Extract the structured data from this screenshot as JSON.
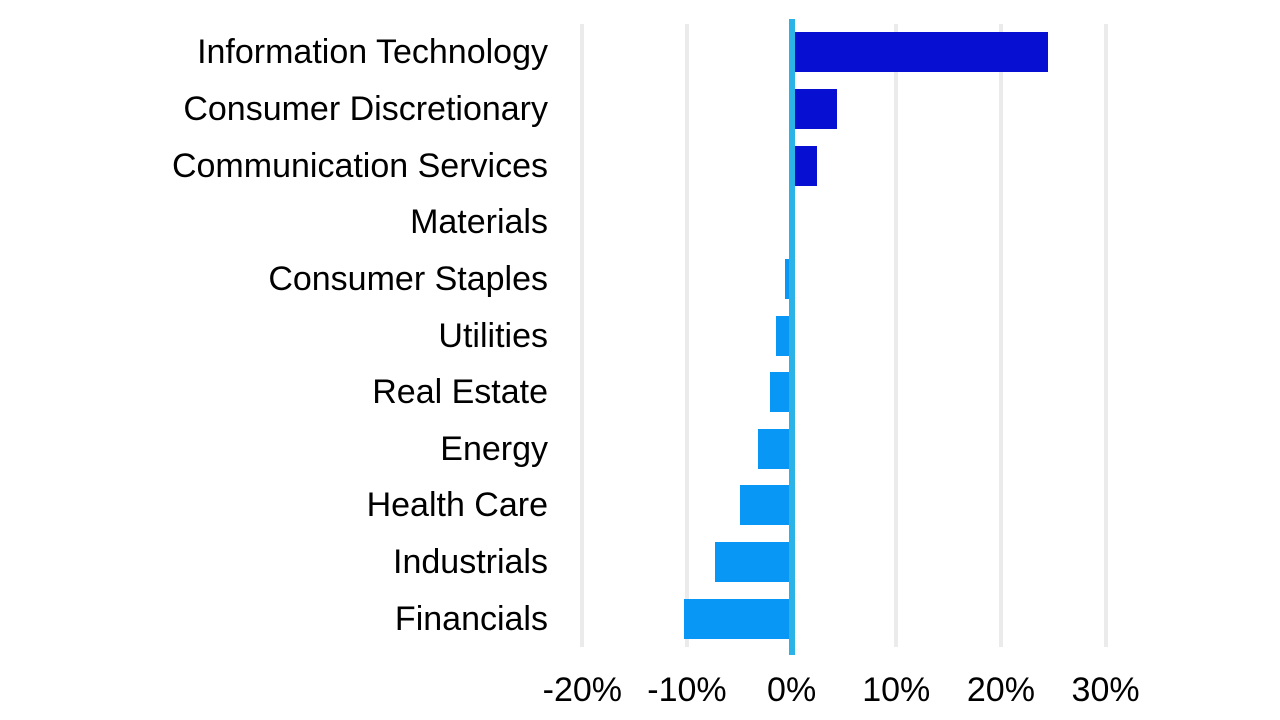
{
  "page": {
    "background_color": "#FFFFFF"
  },
  "chart_data": {
    "type": "bar",
    "orientation": "horizontal",
    "title": "",
    "xlabel": "",
    "ylabel": "",
    "categories": [
      "Information Technology",
      "Consumer Discretionary",
      "Communication Services",
      "Materials",
      "Consumer Staples",
      "Utilities",
      "Real Estate",
      "Energy",
      "Health Care",
      "Industrials",
      "Financials"
    ],
    "values": [
      24.5,
      4.3,
      2.4,
      0.0,
      -0.6,
      -1.5,
      -2.1,
      -3.2,
      -4.9,
      -7.3,
      -10.3
    ],
    "unit": "%",
    "x_ticks": [
      -20,
      -10,
      0,
      10,
      20,
      30
    ],
    "x_tick_labels": [
      "-20%",
      "-10%",
      "0%",
      "10%",
      "20%",
      "30%"
    ],
    "xlim": [
      -20.7,
      35.2
    ],
    "grid": true,
    "legend": false,
    "colors": {
      "positive_bar": "#0710D2",
      "negative_bar": "#0997F5",
      "zero_axis_line": "#2BB3E8",
      "gridline": "#EBEBEB",
      "label_text": "#000000"
    }
  }
}
